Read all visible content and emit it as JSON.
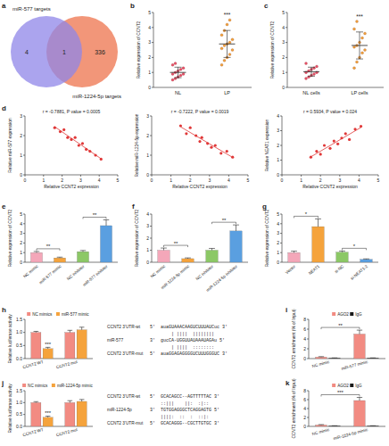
{
  "chart_data": [
    {
      "type": "venn",
      "panel": "a",
      "sets": [
        {
          "name": "miR-577 targets",
          "color": "#8f85e8"
        },
        {
          "name": "miR-1224-5p targets",
          "color": "#f08462"
        }
      ],
      "values": [
        4,
        1,
        336
      ]
    },
    {
      "type": "strip",
      "panel": "b",
      "categories": [
        "NL",
        "LP"
      ],
      "colors": [
        "#e8506a",
        "#f2a33a"
      ],
      "values": [
        [
          0.5,
          0.6,
          0.7,
          0.8,
          0.9,
          0.9,
          1.0,
          1.1,
          1.2,
          1.3,
          1.5,
          1.6
        ],
        [
          1.5,
          1.8,
          2.0,
          2.2,
          2.5,
          2.6,
          2.8,
          2.9,
          3.0,
          3.2,
          3.5,
          3.8,
          4.2,
          4.5
        ]
      ],
      "mean": [
        1.0,
        2.9
      ],
      "sd": [
        0.35,
        0.9
      ],
      "y_label": "Relative expression of CCNT2",
      "ylim": [
        0,
        5
      ],
      "yticks": [
        0,
        1,
        2,
        3,
        4,
        5
      ],
      "annotations": [
        {
          "text": "***",
          "category": "LP"
        }
      ]
    },
    {
      "type": "strip",
      "panel": "c",
      "categories": [
        "NL cells",
        "LP cells"
      ],
      "colors": [
        "#e8506a",
        "#f2a33a"
      ],
      "values": [
        [
          0.6,
          0.7,
          0.8,
          0.9,
          1.0,
          1.0,
          1.1,
          1.2,
          1.3,
          1.4,
          1.6
        ],
        [
          1.3,
          1.7,
          2.0,
          2.3,
          2.5,
          2.7,
          2.8,
          3.0,
          3.3,
          3.6,
          3.9,
          4.4
        ]
      ],
      "mean": [
        1.05,
        2.8
      ],
      "sd": [
        0.3,
        0.9
      ],
      "y_label": "Relative expression of CCNT2",
      "ylim": [
        0,
        5
      ],
      "yticks": [
        0,
        1,
        2,
        3,
        4,
        5
      ],
      "annotations": [
        {
          "text": "***",
          "category": "LP cells"
        }
      ]
    },
    {
      "type": "scatter",
      "panel": "d",
      "color": "#e03838",
      "x": [
        1.6,
        1.9,
        2.1,
        2.3,
        2.5,
        2.7,
        2.9,
        3.1,
        3.3,
        3.5,
        3.8,
        4.1
      ],
      "values": [
        2.4,
        2.2,
        2.3,
        1.9,
        1.8,
        1.9,
        1.5,
        1.6,
        1.3,
        1.2,
        1.0,
        0.8
      ],
      "x_label": "Relative CCNT2 expression",
      "y_label": "Relative miR-577 expression",
      "annotation": "r = -0.7881, P value = 0.0005",
      "xlim": [
        0,
        5
      ],
      "xticks": [
        0,
        1,
        2,
        3,
        4,
        5
      ],
      "ylim": [
        0,
        3
      ],
      "yticks": [
        0,
        1,
        2,
        3
      ]
    },
    {
      "type": "scatter",
      "color": "#e03838",
      "x": [
        1.5,
        1.8,
        2.0,
        2.3,
        2.5,
        2.6,
        2.9,
        3.1,
        3.3,
        3.6,
        3.9,
        4.2
      ],
      "values": [
        2.5,
        2.1,
        2.4,
        2.0,
        1.7,
        1.9,
        1.6,
        1.4,
        1.5,
        1.1,
        1.2,
        0.9
      ],
      "x_label": "Relative CCNT2 expression",
      "y_label": "Relative miR-1224-5p expression",
      "annotation": "r = -0.7222, P value = 0.0019",
      "xlim": [
        0,
        5
      ],
      "xticks": [
        0,
        1,
        2,
        3,
        4,
        5
      ],
      "ylim": [
        0,
        3
      ],
      "yticks": [
        0,
        1,
        2,
        3
      ]
    },
    {
      "type": "scatter",
      "color": "#e03838",
      "x": [
        1.5,
        1.8,
        2.0,
        2.2,
        2.5,
        2.7,
        2.9,
        3.1,
        3.3,
        3.5,
        3.8,
        4.1
      ],
      "values": [
        1.2,
        1.6,
        1.4,
        2.0,
        1.8,
        2.3,
        2.1,
        2.5,
        2.8,
        2.4,
        3.1,
        3.3
      ],
      "x_label": "Relative CCNT2 expression",
      "y_label": "Relative NEAT1 expression",
      "annotation": "r = 0.5934, P value = 0.024",
      "xlim": [
        0,
        5
      ],
      "xticks": [
        0,
        1,
        2,
        3,
        4,
        5
      ],
      "ylim": [
        0,
        4
      ],
      "yticks": [
        0,
        1,
        2,
        3,
        4
      ]
    },
    {
      "type": "bar",
      "panel": "e",
      "categories": [
        "NC mimic",
        "miR-577 mimic",
        "NC inhibitor",
        "miR-577 inhibitor"
      ],
      "values": [
        1.0,
        0.45,
        1.1,
        3.8
      ],
      "errors": [
        0.12,
        0.08,
        0.12,
        0.6
      ],
      "colors": [
        "#f4a7b9",
        "#f5a33c",
        "#8cc866",
        "#5a9fe0"
      ],
      "y_label": "Relative expression of CCNT2",
      "ylim": [
        0,
        5
      ],
      "yticks": [
        0,
        1,
        2,
        3,
        4,
        5
      ],
      "annotations": [
        {
          "text": "**",
          "from": "NC mimic",
          "to": "miR-577 mimic"
        },
        {
          "text": "**",
          "from": "NC inhibitor",
          "to": "miR-577 inhibitor"
        }
      ]
    },
    {
      "type": "bar",
      "panel": "f",
      "categories": [
        "NC mimic",
        "miR-1224-5p mimic",
        "NC inhibitor",
        "miR-1224-5p inhibitor"
      ],
      "values": [
        1.0,
        0.3,
        1.0,
        2.6
      ],
      "errors": [
        0.18,
        0.06,
        0.15,
        0.5
      ],
      "colors": [
        "#f4a7b9",
        "#f5a33c",
        "#8cc866",
        "#5a9fe0"
      ],
      "y_label": "Relative expression of CCNT2",
      "ylim": [
        0,
        4
      ],
      "yticks": [
        0,
        1,
        2,
        3,
        4
      ],
      "annotations": [
        {
          "text": "**",
          "from": "NC mimic",
          "to": "miR-1224-5p mimic"
        },
        {
          "text": "**",
          "from": "NC inhibitor",
          "to": "miR-1224-5p inhibitor"
        }
      ]
    },
    {
      "type": "bar",
      "panel": "g",
      "categories": [
        "Vector",
        "NEAT1",
        "si-NC",
        "si-NEAT1-2"
      ],
      "values": [
        1.0,
        3.7,
        1.05,
        0.3
      ],
      "errors": [
        0.15,
        0.8,
        0.12,
        0.05
      ],
      "colors": [
        "#f4a7b9",
        "#f5a33c",
        "#8cc866",
        "#5a9fe0"
      ],
      "y_label": "Relative expression of CCNT2",
      "ylim": [
        0,
        5
      ],
      "yticks": [
        0,
        1,
        2,
        3,
        4,
        5
      ],
      "annotations": [
        {
          "text": "*",
          "from": "Vector",
          "to": "NEAT1"
        },
        {
          "text": "*",
          "from": "si-NC",
          "to": "si-NEAT1-2"
        }
      ]
    },
    {
      "type": "bar",
      "panel": "h",
      "categories": [
        "CCNT2 WT",
        "CCNT2 mut"
      ],
      "series": [
        {
          "name": "NC mimics",
          "color": "#f28b82",
          "values": [
            1.0,
            1.0
          ],
          "errors": [
            0.04,
            0.08
          ]
        },
        {
          "name": "miR-577 mimic",
          "color": "#f5a33c",
          "values": [
            0.38,
            1.1
          ],
          "errors": [
            0.05,
            0.1
          ]
        }
      ],
      "y_label": "Relative luciferase activity",
      "ylim": [
        0,
        1.5
      ],
      "yticks": [
        {
          "value": 0,
          "label": "0.0"
        },
        0.5,
        {
          "value": 1,
          "label": "1.0"
        },
        1.5
      ],
      "legend": "top",
      "annotations": [
        {
          "text": "***",
          "category": "CCNT2 WT",
          "series": "miR-577 mimic"
        }
      ]
    },
    {
      "type": "bar",
      "panel": "i",
      "categories": [
        "NC mimic",
        "miR-577 mimic"
      ],
      "series": [
        {
          "name": "AGO2",
          "color": "#f28b82",
          "values": [
            0.3,
            5.0
          ],
          "errors": [
            0.1,
            0.8
          ]
        },
        {
          "name": "IgG",
          "color": "#1a1a1a",
          "values": [
            0.1,
            0.1
          ],
          "errors": [
            0.05,
            0.05
          ]
        }
      ],
      "y_label": "CCNT2 enrichment (% of Input)",
      "ylim": [
        0,
        8
      ],
      "yticks": [
        0,
        2,
        4,
        6,
        8
      ],
      "legend": "top",
      "annotations": [
        {
          "text": "**",
          "from": "NC mimic",
          "to": "miR-577 mimic",
          "series": "AGO2"
        }
      ]
    },
    {
      "type": "bar",
      "panel": "j",
      "categories": [
        "CCNT2 WT",
        "CCNT2 mut"
      ],
      "series": [
        {
          "name": "NC mimics",
          "color": "#f28b82",
          "values": [
            1.0,
            1.0
          ],
          "errors": [
            0.04,
            0.08
          ]
        },
        {
          "name": "miR-1224-5p mimic",
          "color": "#f5a33c",
          "values": [
            0.38,
            1.05
          ],
          "errors": [
            0.05,
            0.08
          ]
        }
      ],
      "y_label": "Relative luciferase activity",
      "ylim": [
        0,
        1.5
      ],
      "yticks": [
        {
          "value": 0,
          "label": "0.0"
        },
        0.5,
        {
          "value": 1,
          "label": "1.0"
        },
        1.5
      ],
      "legend": "top",
      "annotations": [
        {
          "text": "***",
          "category": "CCNT2 WT",
          "series": "miR-1224-5p mimic"
        }
      ]
    },
    {
      "type": "bar",
      "panel": "k",
      "categories": [
        "NC mimic",
        "miR-1224-5p mimic"
      ],
      "series": [
        {
          "name": "AGO2",
          "color": "#f28b82",
          "values": [
            0.3,
            5.8
          ],
          "errors": [
            0.1,
            0.7
          ]
        },
        {
          "name": "IgG",
          "color": "#1a1a1a",
          "values": [
            0.1,
            0.1
          ],
          "errors": [
            0.05,
            0.05
          ]
        }
      ],
      "y_label": "CCNT2 enrichment (% of Input)",
      "ylim": [
        0,
        8
      ],
      "yticks": [
        0,
        2,
        4,
        6,
        8
      ],
      "legend": "top",
      "annotations": [
        {
          "text": "***",
          "from": "NC mimic",
          "to": "miR-1224-5p mimic",
          "series": "AGO2"
        }
      ]
    }
  ],
  "alignments": [
    {
      "rows": [
        {
          "name": "CCNT2 3'UTR-wt",
          "seq": "5'  auaGUAAACAAGUCUUUAUCuc 3'"
        },
        {
          "seq": "        | ||||  ||||||||"
        },
        {
          "name": "miR-577",
          "seq": "3'  gucCA-UGGUUAUAAAUAGAu 5'"
        },
        {
          "seq": "        | ||||  ::::::::"
        },
        {
          "name": "CCNT2 3'UTR-mut",
          "seq": "5'  auaGGAGAGGGGUCUUUGGGUC 3'"
        }
      ]
    },
    {
      "rows": [
        {
          "name": "CCNT2 3'UTR-wt",
          "seq": "5'  GCACAGCC--AGTTTTTAC 3'"
        },
        {
          "seq": "    ::|||    ||:  :|::"
        },
        {
          "name": "miR-1224-5p",
          "seq": "3'  TGTGGAGGGCTCAGGAGTG 5'"
        },
        {
          "seq": "    ||||:  ::  :  ::|:"
        },
        {
          "name": "CCNT2 3'UTR-mut",
          "seq": "5'  GCACAGGG--CGCTTGTGC 3'"
        }
      ]
    }
  ]
}
